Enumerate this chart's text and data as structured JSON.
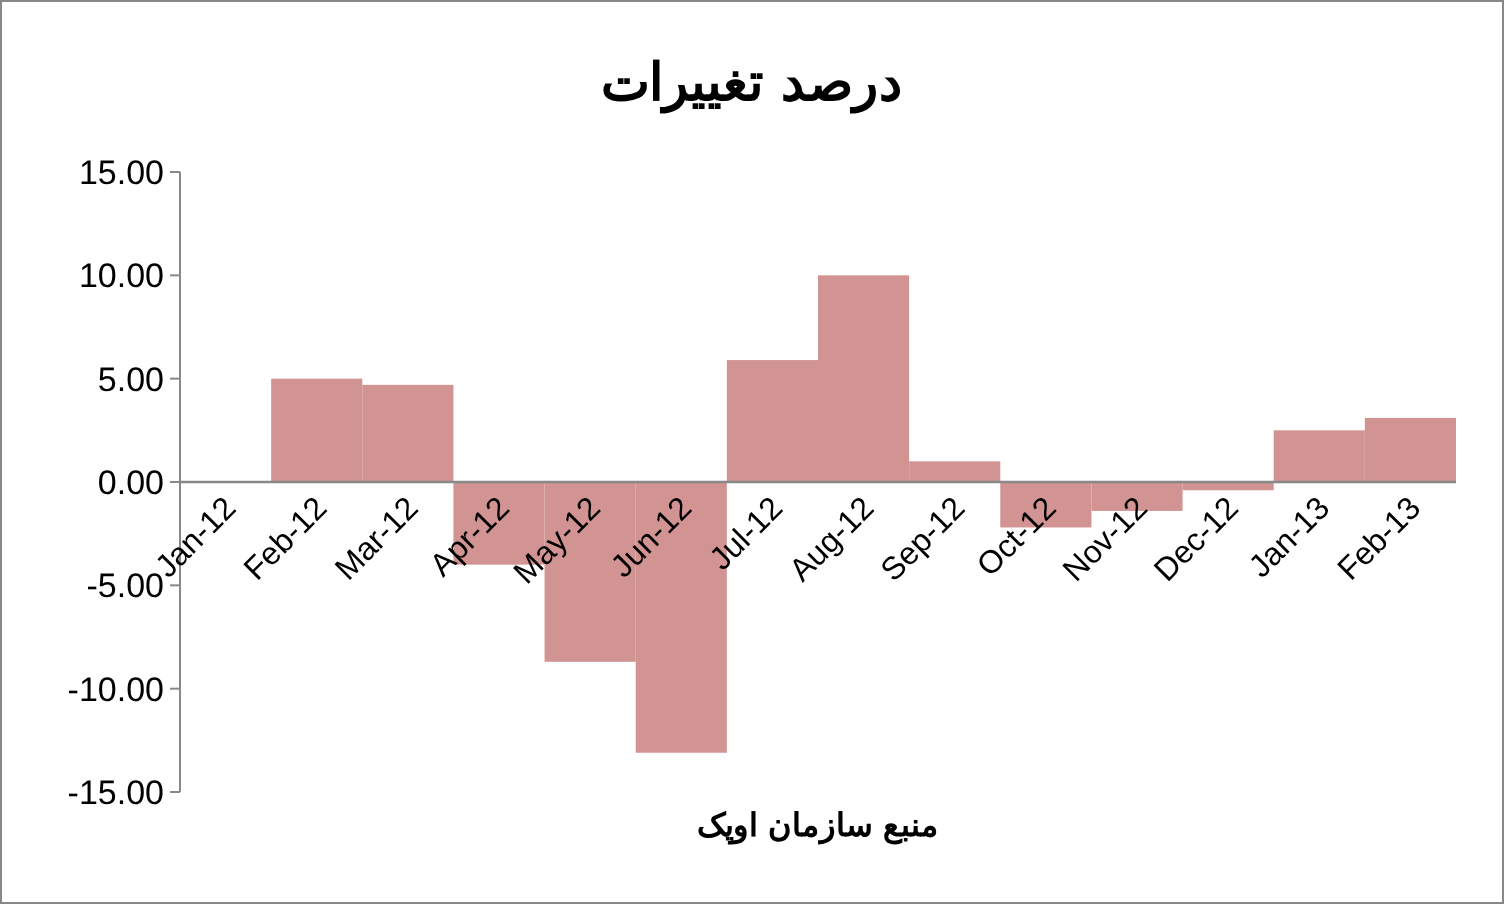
{
  "chart_data": {
    "type": "bar",
    "title": "درصد تغییرات",
    "xlabel": "منبع سازمان اوپک",
    "categories": [
      "Jan-12",
      "Feb-12",
      "Mar-12",
      "Apr-12",
      "May-12",
      "Jun-12",
      "Jul-12",
      "Aug-12",
      "Sep-12",
      "Oct-12",
      "Nov-12",
      "Dec-12",
      "Jan-13",
      "Feb-13"
    ],
    "values": [
      0,
      5.0,
      4.7,
      -4.0,
      -8.7,
      -13.1,
      5.9,
      10.0,
      1.0,
      -2.2,
      -1.4,
      -0.4,
      2.5,
      3.1
    ],
    "color": "#d29393",
    "ylim": [
      -15,
      15
    ],
    "yticks": [
      {
        "value": -15,
        "label": "-15.00"
      },
      {
        "value": -10,
        "label": "-10.00"
      },
      {
        "value": -5,
        "label": "-5.00"
      },
      {
        "value": 0,
        "label": "0.00"
      },
      {
        "value": 5,
        "label": "5.00"
      },
      {
        "value": 10,
        "label": "10.00"
      },
      {
        "value": 15,
        "label": "15.00"
      }
    ],
    "grid": false
  }
}
